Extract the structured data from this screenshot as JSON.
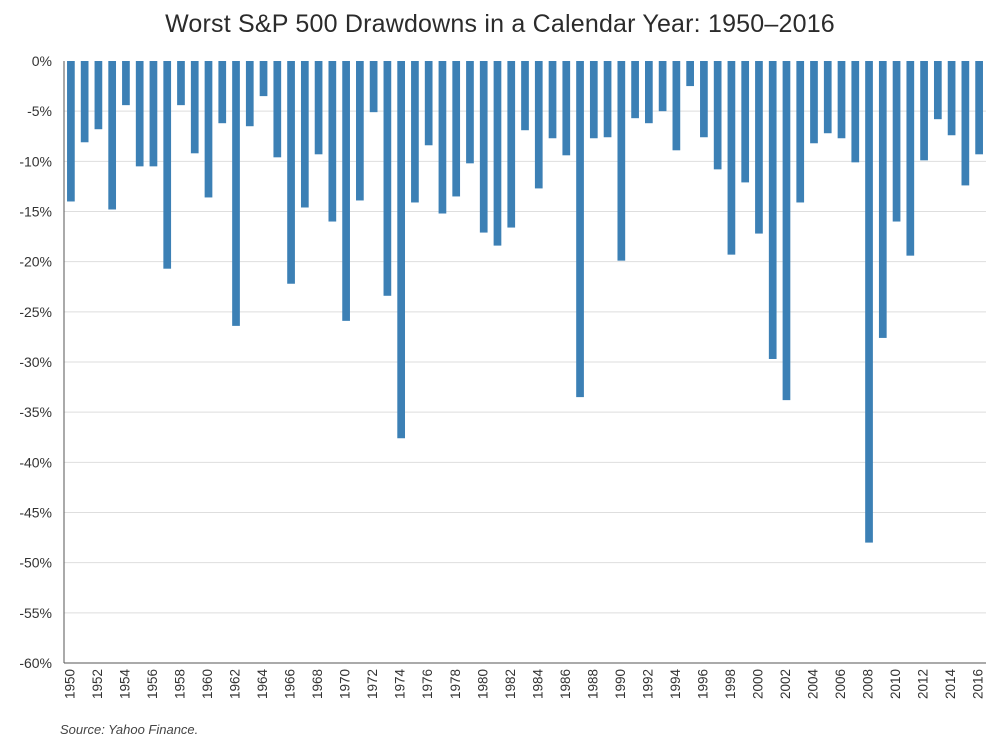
{
  "title": "Worst S&P 500 Drawdowns in a Calendar Year: 1950–2016",
  "source": "Source: Yahoo Finance.",
  "colors": {
    "bar": "#3c80b5",
    "grid": "#dedede",
    "axis": "#555555",
    "text": "#333333"
  },
  "chart_data": {
    "type": "bar",
    "title": "Worst S&P 500 Drawdowns in a Calendar Year: 1950–2016",
    "xlabel": "",
    "ylabel": "",
    "ylim": [
      -60,
      0
    ],
    "y_ticks": [
      0,
      -5,
      -10,
      -15,
      -20,
      -25,
      -30,
      -35,
      -40,
      -45,
      -50,
      -55,
      -60
    ],
    "y_tick_labels": [
      "0%",
      "-5%",
      "-10%",
      "-15%",
      "-20%",
      "-25%",
      "-30%",
      "-35%",
      "-40%",
      "-45%",
      "-50%",
      "-55%",
      "-60%"
    ],
    "x_tick_labels": [
      "1950",
      "1952",
      "1954",
      "1956",
      "1958",
      "1960",
      "1962",
      "1964",
      "1966",
      "1968",
      "1970",
      "1972",
      "1974",
      "1976",
      "1978",
      "1980",
      "1982",
      "1984",
      "1986",
      "1988",
      "1990",
      "1992",
      "1994",
      "1996",
      "1998",
      "2000",
      "2002",
      "2004",
      "2006",
      "2008",
      "2010",
      "2012",
      "2014",
      "2016"
    ],
    "grid": true,
    "legend": "none",
    "categories": [
      "1950",
      "1951",
      "1952",
      "1953",
      "1954",
      "1955",
      "1956",
      "1957",
      "1958",
      "1959",
      "1960",
      "1961",
      "1962",
      "1963",
      "1964",
      "1965",
      "1966",
      "1967",
      "1968",
      "1969",
      "1970",
      "1971",
      "1972",
      "1973",
      "1974",
      "1975",
      "1976",
      "1977",
      "1978",
      "1979",
      "1980",
      "1981",
      "1982",
      "1983",
      "1984",
      "1985",
      "1986",
      "1987",
      "1988",
      "1989",
      "1990",
      "1991",
      "1992",
      "1993",
      "1994",
      "1995",
      "1996",
      "1997",
      "1998",
      "1999",
      "2000",
      "2001",
      "2002",
      "2003",
      "2004",
      "2005",
      "2006",
      "2007",
      "2008",
      "2009",
      "2010",
      "2011",
      "2012",
      "2013",
      "2014",
      "2015",
      "2016"
    ],
    "values": [
      -14.0,
      -8.1,
      -6.8,
      -14.8,
      -4.4,
      -10.5,
      -10.5,
      -20.7,
      -4.4,
      -9.2,
      -13.6,
      -6.2,
      -26.4,
      -6.5,
      -3.5,
      -9.6,
      -22.2,
      -14.6,
      -9.3,
      -16.0,
      -25.9,
      -13.9,
      -5.1,
      -23.4,
      -37.6,
      -14.1,
      -8.4,
      -15.2,
      -13.5,
      -10.2,
      -17.1,
      -18.4,
      -16.6,
      -6.9,
      -12.7,
      -7.7,
      -9.4,
      -33.5,
      -7.7,
      -7.6,
      -19.9,
      -5.7,
      -6.2,
      -5.0,
      -8.9,
      -2.5,
      -7.6,
      -10.8,
      -19.3,
      -12.1,
      -17.2,
      -29.7,
      -33.8,
      -14.1,
      -8.2,
      -7.2,
      -7.7,
      -10.1,
      -48.0,
      -27.6,
      -16.0,
      -19.4,
      -9.9,
      -5.8,
      -7.4,
      -12.4,
      -9.3
    ]
  }
}
